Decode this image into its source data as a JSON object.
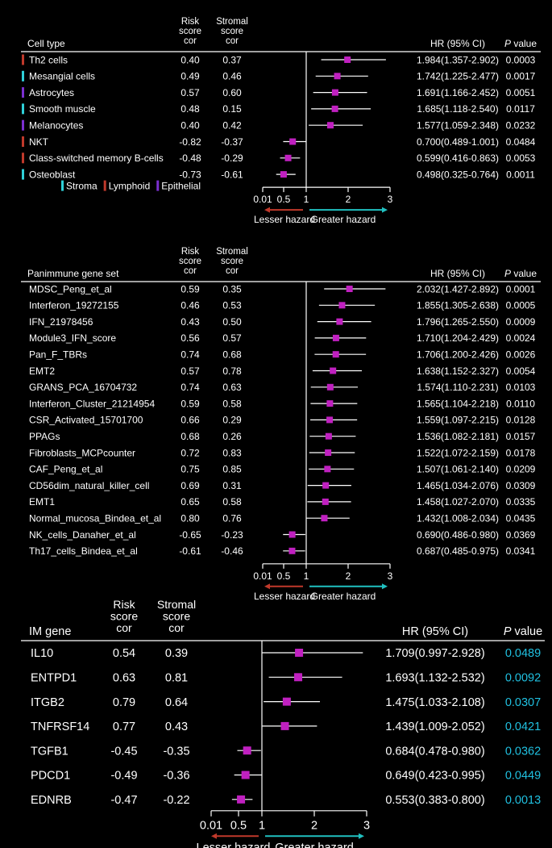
{
  "colors": {
    "background": "#000000",
    "text": "#ffffff",
    "marker": "#c020c0",
    "ci_line": "#ffffff",
    "stroma": "#2fd0d8",
    "lymphoid": "#c0392b",
    "epithelial": "#7b2fd0",
    "lesser_arrow": "#c0392b",
    "greater_arrow": "#20c0c0",
    "pvalue_highlight": "#20c0e0"
  },
  "chart_data": [
    {
      "type": "forest",
      "id": "cell-type",
      "headers": {
        "label": "Cell type",
        "risk": [
          "Risk",
          "score",
          "cor"
        ],
        "stromal": [
          "Stromal",
          "score",
          "cor"
        ],
        "hr": "HR (95% CI)",
        "p_italic": "P",
        "p_rest": " value"
      },
      "rows": [
        {
          "label": "Th2 cells",
          "group": "Lymphoid",
          "risk": "0.40",
          "stromal": "0.37",
          "hr": 1.984,
          "lo": 1.357,
          "hi": 2.902,
          "hr_text": "1.984(1.357-2.902)",
          "p": "0.0003"
        },
        {
          "label": "Mesangial cells",
          "group": "Stroma",
          "risk": "0.49",
          "stromal": "0.46",
          "hr": 1.742,
          "lo": 1.225,
          "hi": 2.477,
          "hr_text": "1.742(1.225-2.477)",
          "p": "0.0017"
        },
        {
          "label": "Astrocytes",
          "group": "Epithelial",
          "risk": "0.57",
          "stromal": "0.60",
          "hr": 1.691,
          "lo": 1.166,
          "hi": 2.452,
          "hr_text": "1.691(1.166-2.452)",
          "p": "0.0051"
        },
        {
          "label": "Smooth muscle",
          "group": "Stroma",
          "risk": "0.48",
          "stromal": "0.15",
          "hr": 1.685,
          "lo": 1.118,
          "hi": 2.54,
          "hr_text": "1.685(1.118-2.540)",
          "p": "0.0117"
        },
        {
          "label": "Melanocytes",
          "group": "Epithelial",
          "risk": "0.40",
          "stromal": "0.42",
          "hr": 1.577,
          "lo": 1.059,
          "hi": 2.348,
          "hr_text": "1.577(1.059-2.348)",
          "p": "0.0232"
        },
        {
          "label": "NKT",
          "group": "Lymphoid",
          "risk": "-0.82",
          "stromal": "-0.37",
          "hr": 0.7,
          "lo": 0.489,
          "hi": 1.001,
          "hr_text": "0.700(0.489-1.001)",
          "p": "0.0484"
        },
        {
          "label": "Class-switched memory B-cells",
          "group": "Lymphoid",
          "risk": "-0.48",
          "stromal": "-0.29",
          "hr": 0.599,
          "lo": 0.416,
          "hi": 0.863,
          "hr_text": "0.599(0.416-0.863)",
          "p": "0.0053"
        },
        {
          "label": "Osteoblast",
          "group": "Stroma",
          "risk": "-0.73",
          "stromal": "-0.61",
          "hr": 0.498,
          "lo": 0.325,
          "hi": 0.764,
          "hr_text": "0.498(0.325-0.764)",
          "p": "0.0011"
        }
      ],
      "legend": [
        {
          "name": "Stroma",
          "color": "#2fd0d8"
        },
        {
          "name": "Lymphoid",
          "color": "#c0392b"
        },
        {
          "name": "Epithelial",
          "color": "#7b2fd0"
        }
      ],
      "axis": {
        "ticks": [
          "0.01",
          "0.5",
          "1",
          "2",
          "3"
        ],
        "lesser": "Lesser hazard",
        "greater": "Greater hazard"
      }
    },
    {
      "type": "forest",
      "id": "panimmune",
      "headers": {
        "label": "Panimmune gene set",
        "risk": [
          "Risk",
          "score",
          "cor"
        ],
        "stromal": [
          "Stromal",
          "score",
          "cor"
        ],
        "hr": "HR (95% CI)",
        "p_italic": "P",
        "p_rest": " value"
      },
      "rows": [
        {
          "label": "MDSC_Peng_et_al",
          "risk": "0.59",
          "stromal": "0.35",
          "hr": 2.032,
          "lo": 1.427,
          "hi": 2.892,
          "hr_text": "2.032(1.427-2.892)",
          "p": "0.0001"
        },
        {
          "label": "Interferon_19272155",
          "risk": "0.46",
          "stromal": "0.53",
          "hr": 1.855,
          "lo": 1.305,
          "hi": 2.638,
          "hr_text": "1.855(1.305-2.638)",
          "p": "0.0005"
        },
        {
          "label": "IFN_21978456",
          "risk": "0.43",
          "stromal": "0.50",
          "hr": 1.796,
          "lo": 1.265,
          "hi": 2.55,
          "hr_text": "1.796(1.265-2.550)",
          "p": "0.0009"
        },
        {
          "label": "Module3_IFN_score",
          "risk": "0.56",
          "stromal": "0.57",
          "hr": 1.71,
          "lo": 1.204,
          "hi": 2.429,
          "hr_text": "1.710(1.204-2.429)",
          "p": "0.0024"
        },
        {
          "label": "Pan_F_TBRs",
          "risk": "0.74",
          "stromal": "0.68",
          "hr": 1.706,
          "lo": 1.2,
          "hi": 2.426,
          "hr_text": "1.706(1.200-2.426)",
          "p": "0.0026"
        },
        {
          "label": "EMT2",
          "risk": "0.57",
          "stromal": "0.78",
          "hr": 1.638,
          "lo": 1.152,
          "hi": 2.327,
          "hr_text": "1.638(1.152-2.327)",
          "p": "0.0054"
        },
        {
          "label": "GRANS_PCA_16704732",
          "risk": "0.74",
          "stromal": "0.63",
          "hr": 1.574,
          "lo": 1.11,
          "hi": 2.231,
          "hr_text": "1.574(1.110-2.231)",
          "p": "0.0103"
        },
        {
          "label": "Interferon_Cluster_21214954",
          "risk": "0.59",
          "stromal": "0.58",
          "hr": 1.565,
          "lo": 1.104,
          "hi": 2.218,
          "hr_text": "1.565(1.104-2.218)",
          "p": "0.0110"
        },
        {
          "label": "CSR_Activated_15701700",
          "risk": "0.66",
          "stromal": "0.29",
          "hr": 1.559,
          "lo": 1.097,
          "hi": 2.215,
          "hr_text": "1.559(1.097-2.215)",
          "p": "0.0128"
        },
        {
          "label": "PPAGs",
          "risk": "0.68",
          "stromal": "0.26",
          "hr": 1.536,
          "lo": 1.082,
          "hi": 2.181,
          "hr_text": "1.536(1.082-2.181)",
          "p": "0.0157"
        },
        {
          "label": "Fibroblasts_MCPcounter",
          "risk": "0.72",
          "stromal": "0.83",
          "hr": 1.522,
          "lo": 1.072,
          "hi": 2.159,
          "hr_text": "1.522(1.072-2.159)",
          "p": "0.0178"
        },
        {
          "label": "CAF_Peng_et_al",
          "risk": "0.75",
          "stromal": "0.85",
          "hr": 1.507,
          "lo": 1.061,
          "hi": 2.14,
          "hr_text": "1.507(1.061-2.140)",
          "p": "0.0209"
        },
        {
          "label": "CD56dim_natural_killer_cell",
          "risk": "0.69",
          "stromal": "0.31",
          "hr": 1.465,
          "lo": 1.034,
          "hi": 2.076,
          "hr_text": "1.465(1.034-2.076)",
          "p": "0.0309"
        },
        {
          "label": "EMT1",
          "risk": "0.65",
          "stromal": "0.58",
          "hr": 1.458,
          "lo": 1.027,
          "hi": 2.07,
          "hr_text": "1.458(1.027-2.070)",
          "p": "0.0335"
        },
        {
          "label": "Normal_mucosa_Bindea_et_al",
          "risk": "0.80",
          "stromal": "0.76",
          "hr": 1.432,
          "lo": 1.008,
          "hi": 2.034,
          "hr_text": "1.432(1.008-2.034)",
          "p": "0.0435"
        },
        {
          "label": "NK_cells_Danaher_et_al",
          "risk": "-0.65",
          "stromal": "-0.23",
          "hr": 0.69,
          "lo": 0.486,
          "hi": 0.98,
          "hr_text": "0.690(0.486-0.980)",
          "p": "0.0369"
        },
        {
          "label": "Th17_cells_Bindea_et_al",
          "risk": "-0.61",
          "stromal": "-0.46",
          "hr": 0.687,
          "lo": 0.485,
          "hi": 0.975,
          "hr_text": "0.687(0.485-0.975)",
          "p": "0.0341"
        }
      ],
      "axis": {
        "ticks": [
          "0.01",
          "0.5",
          "1",
          "2",
          "3"
        ],
        "lesser": "Lesser hazard",
        "greater": "Greater hazard"
      }
    },
    {
      "type": "forest",
      "id": "im-gene",
      "headers": {
        "label": "IM gene",
        "risk": [
          "Risk",
          "score",
          "cor"
        ],
        "stromal": [
          "Stromal",
          "score",
          "cor"
        ],
        "hr": "HR (95% CI)",
        "p_italic": "P",
        "p_rest": " value"
      },
      "rows": [
        {
          "label": "IL10",
          "risk": "0.54",
          "stromal": "0.39",
          "hr": 1.709,
          "lo": 0.997,
          "hi": 2.928,
          "hr_text": "1.709(0.997-2.928)",
          "p": "0.0489"
        },
        {
          "label": "ENTPD1",
          "risk": "0.63",
          "stromal": "0.81",
          "hr": 1.693,
          "lo": 1.132,
          "hi": 2.532,
          "hr_text": "1.693(1.132-2.532)",
          "p": "0.0092"
        },
        {
          "label": "ITGB2",
          "risk": "0.79",
          "stromal": "0.64",
          "hr": 1.475,
          "lo": 1.033,
          "hi": 2.108,
          "hr_text": "1.475(1.033-2.108)",
          "p": "0.0307"
        },
        {
          "label": "TNFRSF14",
          "risk": "0.77",
          "stromal": "0.43",
          "hr": 1.439,
          "lo": 1.009,
          "hi": 2.052,
          "hr_text": "1.439(1.009-2.052)",
          "p": "0.0421"
        },
        {
          "label": "TGFB1",
          "risk": "-0.45",
          "stromal": "-0.35",
          "hr": 0.684,
          "lo": 0.478,
          "hi": 0.98,
          "hr_text": "0.684(0.478-0.980)",
          "p": "0.0362"
        },
        {
          "label": "PDCD1",
          "risk": "-0.49",
          "stromal": "-0.36",
          "hr": 0.649,
          "lo": 0.423,
          "hi": 0.995,
          "hr_text": "0.649(0.423-0.995)",
          "p": "0.0449"
        },
        {
          "label": "EDNRB",
          "risk": "-0.47",
          "stromal": "-0.22",
          "hr": 0.553,
          "lo": 0.383,
          "hi": 0.8,
          "hr_text": "0.553(0.383-0.800)",
          "p": "0.0013"
        }
      ],
      "axis": {
        "ticks": [
          "0.01",
          "0.5",
          "1",
          "2",
          "3"
        ],
        "lesser": "Lesser hazard",
        "greater": "Greater hazard"
      }
    }
  ]
}
